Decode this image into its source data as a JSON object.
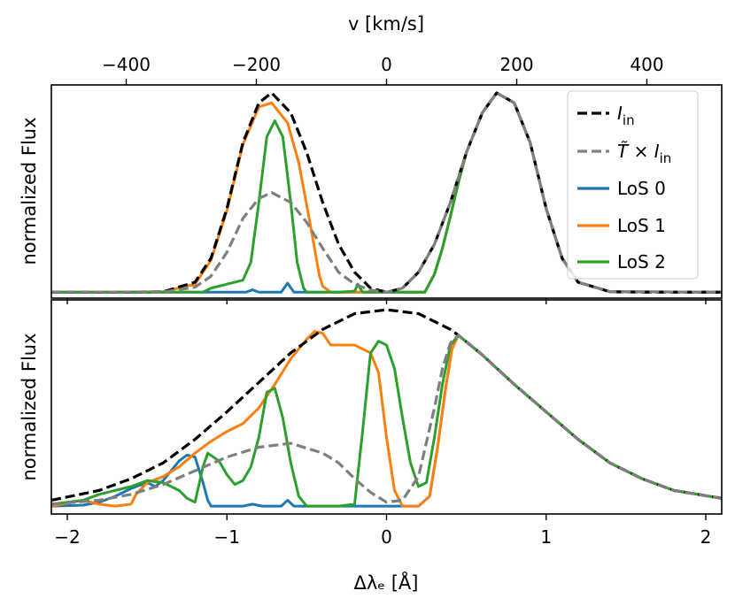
{
  "chart_data": {
    "type": "line",
    "top_axis": {
      "label": "v [km/s]",
      "ticks": [
        -400,
        -200,
        0,
        200,
        400
      ],
      "tick_labels": [
        "−400",
        "−200",
        "0",
        "200",
        "400"
      ],
      "lim": [
        -515,
        515
      ]
    },
    "bottom_axis": {
      "label": "Δλₑ [Å]",
      "ticks": [
        -2,
        -1,
        0,
        1,
        2
      ],
      "tick_labels": [
        "−2",
        "−1",
        "0",
        "1",
        "2"
      ],
      "lim": [
        -2.1,
        2.1
      ]
    },
    "panels": [
      {
        "name": "top",
        "ylabel": "normalized Flux",
        "ylim": [
          -0.03,
          1.04
        ],
        "series": [
          {
            "name": "I_in",
            "label_main": "I",
            "label_sub": "in",
            "color": "#000000",
            "dash": "dashed",
            "x": [
              -2.1,
              -1.6,
              -1.4,
              -1.2,
              -1.1,
              -1.0,
              -0.9,
              -0.8,
              -0.72,
              -0.6,
              -0.5,
              -0.4,
              -0.3,
              -0.2,
              -0.1,
              0.0,
              0.1,
              0.2,
              0.3,
              0.4,
              0.5,
              0.6,
              0.69,
              0.8,
              0.9,
              1.0,
              1.1,
              1.2,
              1.4,
              1.6,
              2.1
            ],
            "y": [
              0,
              0,
              0.002,
              0.05,
              0.17,
              0.42,
              0.75,
              0.95,
              1.0,
              0.9,
              0.7,
              0.45,
              0.24,
              0.1,
              0.02,
              0,
              0.02,
              0.1,
              0.24,
              0.45,
              0.7,
              0.9,
              1.0,
              0.95,
              0.75,
              0.42,
              0.17,
              0.05,
              0.002,
              0,
              0
            ]
          },
          {
            "name": "T_I_in",
            "label_main": "T̃ × I",
            "label_sub": "in",
            "color": "#7f7f7f",
            "dash": "dashed",
            "x": [
              -2.1,
              -1.4,
              -1.2,
              -1.1,
              -1.0,
              -0.9,
              -0.8,
              -0.72,
              -0.6,
              -0.5,
              -0.4,
              -0.3,
              -0.2,
              -0.1,
              0.0,
              0.1,
              0.2,
              0.3,
              0.4,
              0.5,
              0.6,
              0.69,
              0.8,
              0.9,
              1.0,
              1.1,
              1.2,
              1.4,
              2.1
            ],
            "y": [
              0,
              0.001,
              0.025,
              0.08,
              0.2,
              0.37,
              0.47,
              0.5,
              0.45,
              0.35,
              0.22,
              0.1,
              0.04,
              0.01,
              0,
              0.02,
              0.1,
              0.24,
              0.45,
              0.7,
              0.9,
              1.0,
              0.95,
              0.75,
              0.42,
              0.17,
              0.05,
              0.002,
              0
            ]
          },
          {
            "name": "LoS 0",
            "label_main": "LoS 0",
            "label_sub": "",
            "color": "#1f77b4",
            "dash": "solid",
            "x": [
              -2.1,
              -0.88,
              -0.84,
              -0.8,
              -0.66,
              -0.62,
              -0.58,
              0.24,
              0.3,
              0.35,
              0.4,
              0.45,
              0.5,
              0.6,
              0.69,
              0.8,
              0.9,
              1.0,
              1.1,
              1.2,
              1.4,
              2.1
            ],
            "y": [
              0,
              0,
              0.012,
              0,
              0,
              0.045,
              0,
              0,
              0.09,
              0.22,
              0.38,
              0.55,
              0.7,
              0.9,
              1.0,
              0.95,
              0.75,
              0.42,
              0.17,
              0.05,
              0.002,
              0
            ]
          },
          {
            "name": "LoS 1",
            "label_main": "LoS 1",
            "label_sub": "",
            "color": "#ff7f0e",
            "dash": "solid",
            "x": [
              -2.1,
              -1.4,
              -1.2,
              -1.1,
              -1.0,
              -0.9,
              -0.8,
              -0.72,
              -0.62,
              -0.55,
              -0.48,
              -0.42,
              -0.4,
              -0.35,
              0.24,
              0.3,
              0.35,
              0.4,
              0.45,
              0.5,
              0.6,
              0.69,
              0.8,
              0.9,
              1.0,
              1.1,
              1.2,
              1.4,
              2.1
            ],
            "y": [
              0,
              0.002,
              0.04,
              0.16,
              0.41,
              0.74,
              0.93,
              0.95,
              0.85,
              0.65,
              0.35,
              0.08,
              0.03,
              0,
              0,
              0.09,
              0.22,
              0.38,
              0.55,
              0.7,
              0.9,
              1.0,
              0.95,
              0.75,
              0.42,
              0.17,
              0.05,
              0.002,
              0
            ]
          },
          {
            "name": "LoS 2",
            "label_main": "LoS 2",
            "label_sub": "",
            "color": "#2ca02c",
            "dash": "solid",
            "x": [
              -2.1,
              -1.15,
              -1.1,
              -1.0,
              -0.9,
              -0.85,
              -0.8,
              -0.75,
              -0.7,
              -0.65,
              -0.6,
              -0.56,
              -0.52,
              -0.5,
              -0.3,
              -0.2,
              -0.18,
              -0.15,
              0.24,
              0.3,
              0.35,
              0.4,
              0.45,
              0.5,
              0.6,
              0.69,
              0.8,
              0.9,
              1.0,
              1.1,
              1.2,
              1.4,
              2.1
            ],
            "y": [
              0,
              0,
              0.02,
              0.04,
              0.06,
              0.15,
              0.45,
              0.78,
              0.86,
              0.78,
              0.45,
              0.15,
              0.02,
              0,
              0,
              0.005,
              0.04,
              0,
              0,
              0.09,
              0.22,
              0.38,
              0.55,
              0.7,
              0.9,
              1.0,
              0.95,
              0.75,
              0.42,
              0.17,
              0.05,
              0.002,
              0
            ]
          }
        ]
      },
      {
        "name": "bottom",
        "ylabel": "normalized Flux",
        "ylim": [
          -0.04,
          1.05
        ],
        "series": [
          {
            "name": "I_in",
            "color": "#000000",
            "dash": "dashed",
            "x": [
              -2.1,
              -1.8,
              -1.6,
              -1.4,
              -1.2,
              -1.0,
              -0.8,
              -0.6,
              -0.4,
              -0.2,
              0.0,
              0.2,
              0.4,
              0.45,
              0.6,
              0.8,
              1.0,
              1.2,
              1.4,
              1.6,
              1.8,
              2.1
            ],
            "y": [
              0.03,
              0.08,
              0.14,
              0.22,
              0.34,
              0.48,
              0.63,
              0.78,
              0.9,
              0.98,
              1.0,
              0.98,
              0.9,
              0.87,
              0.77,
              0.62,
              0.48,
              0.34,
              0.22,
              0.14,
              0.08,
              0.04
            ]
          },
          {
            "name": "T_I_in",
            "color": "#7f7f7f",
            "dash": "dashed",
            "x": [
              -2.1,
              -1.8,
              -1.6,
              -1.4,
              -1.2,
              -1.0,
              -0.8,
              -0.6,
              -0.4,
              -0.3,
              -0.2,
              -0.1,
              0.0,
              0.1,
              0.2,
              0.3,
              0.35,
              0.4,
              0.45,
              0.6,
              0.8,
              1.0,
              1.2,
              1.4,
              1.6,
              1.8,
              2.1
            ],
            "y": [
              0.01,
              0.03,
              0.06,
              0.11,
              0.18,
              0.25,
              0.3,
              0.32,
              0.27,
              0.22,
              0.14,
              0.07,
              0.02,
              0.03,
              0.15,
              0.5,
              0.7,
              0.83,
              0.87,
              0.77,
              0.62,
              0.48,
              0.34,
              0.22,
              0.14,
              0.08,
              0.04
            ]
          },
          {
            "name": "LoS 0",
            "color": "#1f77b4",
            "dash": "solid",
            "x": [
              -2.1,
              -1.9,
              -1.8,
              -1.7,
              -1.6,
              -1.5,
              -1.45,
              -1.4,
              -1.35,
              -1.3,
              -1.25,
              -1.2,
              -1.15,
              -1.12,
              -1.1,
              -1.05,
              -0.9,
              -0.84,
              -0.78,
              -0.66,
              -0.62,
              -0.58,
              0.2,
              0.27,
              0.32,
              0.37,
              0.41,
              0.45,
              0.6,
              0.8,
              1.0,
              1.2,
              1.4,
              1.6,
              1.8,
              2.1
            ],
            "y": [
              0,
              0.005,
              0.02,
              0.05,
              0.09,
              0.12,
              0.1,
              0.13,
              0.18,
              0.23,
              0.26,
              0.25,
              0.12,
              0.03,
              0,
              0,
              0,
              0.01,
              0,
              0,
              0.03,
              0,
              0,
              0.05,
              0.3,
              0.6,
              0.8,
              0.87,
              0.77,
              0.62,
              0.48,
              0.34,
              0.22,
              0.14,
              0.08,
              0.04
            ]
          },
          {
            "name": "LoS 1",
            "color": "#ff7f0e",
            "dash": "solid",
            "x": [
              -2.1,
              -1.9,
              -1.8,
              -1.7,
              -1.6,
              -1.57,
              -1.5,
              -1.4,
              -1.3,
              -1.2,
              -1.1,
              -1.0,
              -0.9,
              -0.8,
              -0.7,
              -0.6,
              -0.5,
              -0.45,
              -0.4,
              -0.35,
              -0.3,
              -0.2,
              -0.1,
              -0.05,
              0.0,
              0.05,
              0.1,
              0.2,
              0.27,
              0.32,
              0.37,
              0.41,
              0.45,
              0.6,
              0.8,
              1.0,
              1.2,
              1.4,
              1.6,
              1.8,
              2.1
            ],
            "y": [
              0,
              0.03,
              0.01,
              0,
              0.01,
              0.06,
              0.12,
              0.15,
              0.2,
              0.27,
              0.33,
              0.38,
              0.42,
              0.5,
              0.62,
              0.75,
              0.85,
              0.89,
              0.88,
              0.82,
              0.82,
              0.82,
              0.78,
              0.68,
              0.35,
              0.08,
              0,
              0,
              0.05,
              0.3,
              0.6,
              0.8,
              0.87,
              0.77,
              0.62,
              0.48,
              0.34,
              0.22,
              0.14,
              0.08,
              0.04
            ]
          },
          {
            "name": "LoS 2",
            "color": "#2ca02c",
            "dash": "solid",
            "x": [
              -2.1,
              -1.9,
              -1.8,
              -1.7,
              -1.6,
              -1.5,
              -1.4,
              -1.3,
              -1.25,
              -1.2,
              -1.15,
              -1.12,
              -1.05,
              -1.0,
              -0.95,
              -0.9,
              -0.85,
              -0.8,
              -0.75,
              -0.7,
              -0.65,
              -0.6,
              -0.55,
              -0.5,
              -0.45,
              -0.3,
              -0.2,
              -0.15,
              -0.1,
              -0.05,
              0.0,
              0.05,
              0.1,
              0.15,
              0.2,
              0.25,
              0.3,
              0.35,
              0.4,
              0.45,
              0.6,
              0.8,
              1.0,
              1.2,
              1.4,
              1.6,
              1.8,
              2.1
            ],
            "y": [
              0.01,
              0.03,
              0.06,
              0.08,
              0.1,
              0.13,
              0.12,
              0.08,
              0.04,
              0.02,
              0.2,
              0.27,
              0.23,
              0.16,
              0.11,
              0.13,
              0.2,
              0.35,
              0.58,
              0.6,
              0.45,
              0.22,
              0.05,
              0,
              0,
              0,
              0.01,
              0.38,
              0.78,
              0.84,
              0.82,
              0.7,
              0.45,
              0.22,
              0.1,
              0.12,
              0.35,
              0.62,
              0.82,
              0.87,
              0.77,
              0.62,
              0.48,
              0.34,
              0.22,
              0.14,
              0.08,
              0.04
            ]
          }
        ]
      }
    ]
  }
}
